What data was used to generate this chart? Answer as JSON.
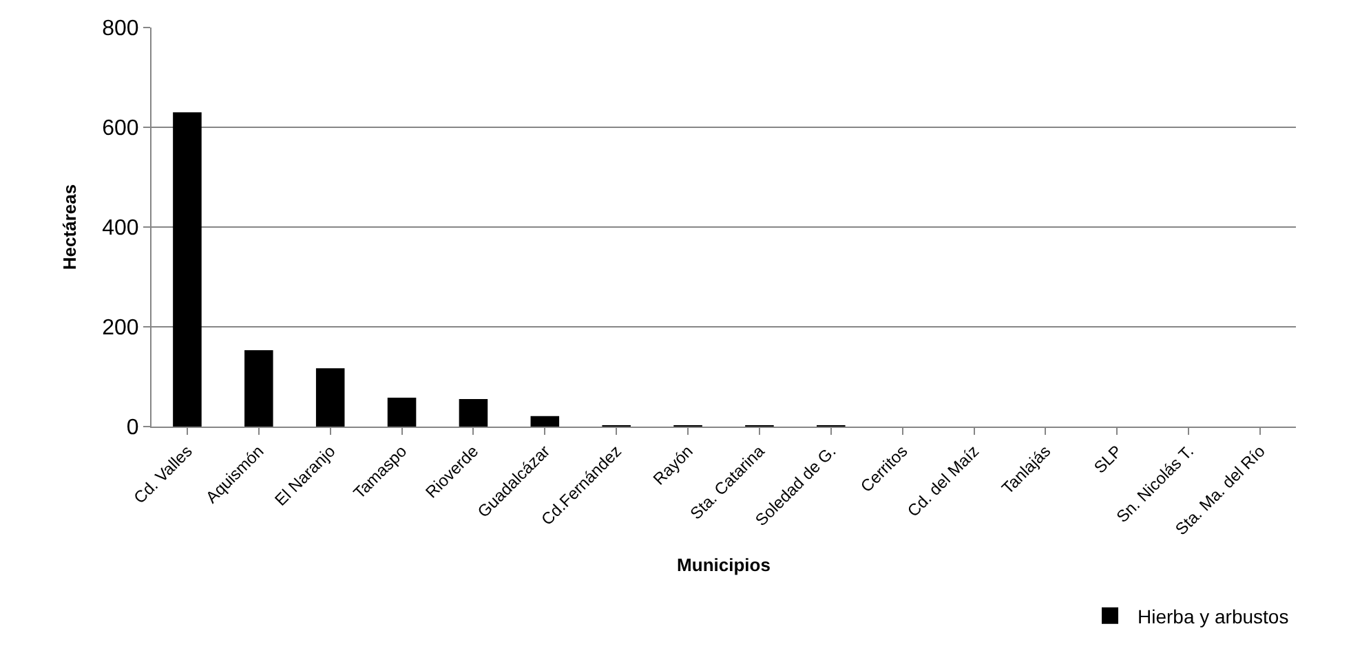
{
  "chart_data": {
    "type": "bar",
    "xlabel": "Municipios",
    "ylabel": "Hectáreas",
    "categories": [
      "Cd. Valles",
      "Aquismón",
      "El Naranjo",
      "Tamaspo",
      "Rioverde",
      "Guadalcázar",
      "Cd.Fernández",
      "Rayón",
      "Sta. Catarina",
      "Soledad de G.",
      "Cerritos",
      "Cd. del Maíz",
      "Tanlajás",
      "SLP",
      "Sn. Nicolás T.",
      "Sta. Ma. del Río"
    ],
    "series": [
      {
        "name": "Hierba y arbustos",
        "color": "#000000",
        "values": [
          630,
          153,
          117,
          58,
          55,
          21,
          2,
          2,
          2,
          1,
          0,
          0,
          0,
          0,
          0,
          0
        ]
      }
    ],
    "ylim": [
      0,
      800
    ],
    "yticks": [
      0,
      200,
      400,
      600,
      800
    ],
    "grid": "y",
    "legend": "bottom right"
  }
}
